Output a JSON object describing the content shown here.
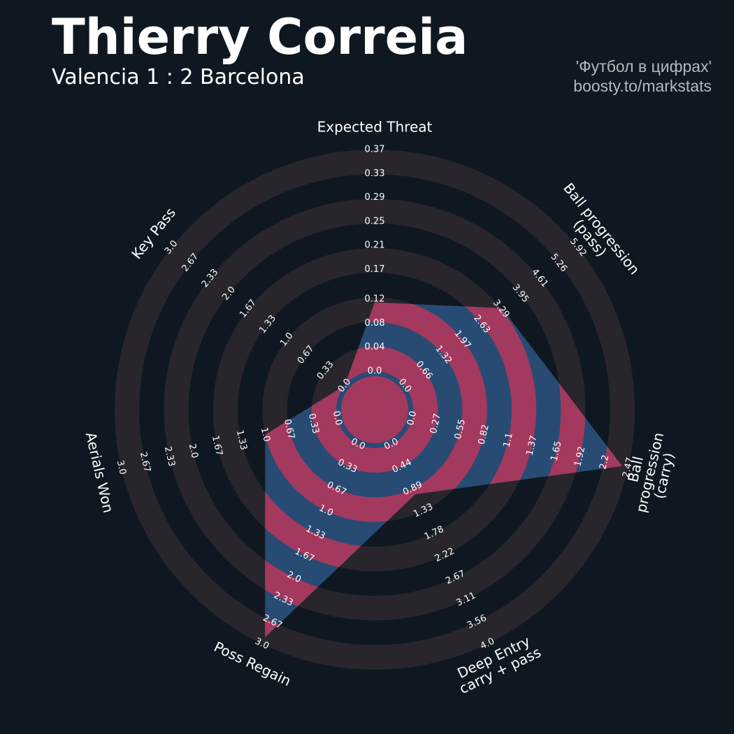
{
  "chart_data": {
    "type": "radar",
    "title": "Thierry Correia",
    "subtitle": "Valencia 1 : 2 Barcelona",
    "credits": [
      "'Футбол в цифрах'",
      "boosty.to/markstats"
    ],
    "colors": {
      "background": "#0f1820",
      "ring": "#28252c",
      "fill": "#284b74",
      "highlight": "#a3395e"
    },
    "values": [
      0.115,
      3.32,
      2.4,
      1.0,
      2.9,
      1.0,
      0
    ],
    "axes": [
      {
        "name": "Expected Threat",
        "lim": [
          0,
          0.37
        ],
        "ticks": [
          {
            "value": 0,
            "label": "0.0"
          },
          0.04,
          0.08,
          0.12,
          0.17,
          0.21,
          0.25,
          0.29,
          0.33,
          0.37
        ]
      },
      {
        "name": "Ball progression (pass)",
        "lim": [
          0,
          5.92
        ],
        "ticks": [
          {
            "value": 0,
            "label": "0.0"
          },
          0.66,
          1.32,
          1.97,
          2.63,
          3.29,
          3.95,
          4.61,
          5.26,
          5.92
        ]
      },
      {
        "name": "Ball progression (carry)",
        "lim": [
          0,
          2.47
        ],
        "ticks": [
          {
            "value": 0,
            "label": "0.0"
          },
          0.27,
          0.55,
          0.82,
          1.1,
          1.37,
          1.65,
          1.92,
          2.2,
          2.47
        ]
      },
      {
        "name": "Deep Entry\ncarry + pass",
        "lim": [
          0,
          4.0
        ],
        "ticks": [
          {
            "value": 0,
            "label": "0.0"
          },
          0.44,
          0.89,
          1.33,
          1.78,
          2.22,
          2.67,
          3.11,
          3.56,
          {
            "value": 4,
            "label": "4.0"
          }
        ]
      },
      {
        "name": "Poss Regain",
        "lim": [
          0,
          3.0
        ],
        "ticks": [
          {
            "value": 0,
            "label": "0.0"
          },
          0.33,
          0.67,
          {
            "value": 1,
            "label": "1.0"
          },
          1.33,
          1.67,
          {
            "value": 2,
            "label": "2.0"
          },
          2.33,
          2.67,
          {
            "value": 3,
            "label": "3.0"
          }
        ]
      },
      {
        "name": "Aerials Won",
        "lim": [
          0,
          3.0
        ],
        "ticks": [
          {
            "value": 0,
            "label": "0.0"
          },
          0.33,
          0.67,
          {
            "value": 1,
            "label": "1.0"
          },
          1.33,
          1.67,
          {
            "value": 2,
            "label": "2.0"
          },
          2.33,
          2.67,
          {
            "value": 3,
            "label": "3.0"
          }
        ]
      },
      {
        "name": "Key Pass",
        "lim": [
          0,
          3.0
        ],
        "ticks": [
          {
            "value": 0,
            "label": "0.0"
          },
          0.33,
          0.67,
          {
            "value": 1,
            "label": "1.0"
          },
          1.33,
          1.67,
          {
            "value": 2,
            "label": "2.0"
          },
          2.33,
          2.67,
          {
            "value": 3,
            "label": "3.0"
          }
        ]
      }
    ]
  }
}
